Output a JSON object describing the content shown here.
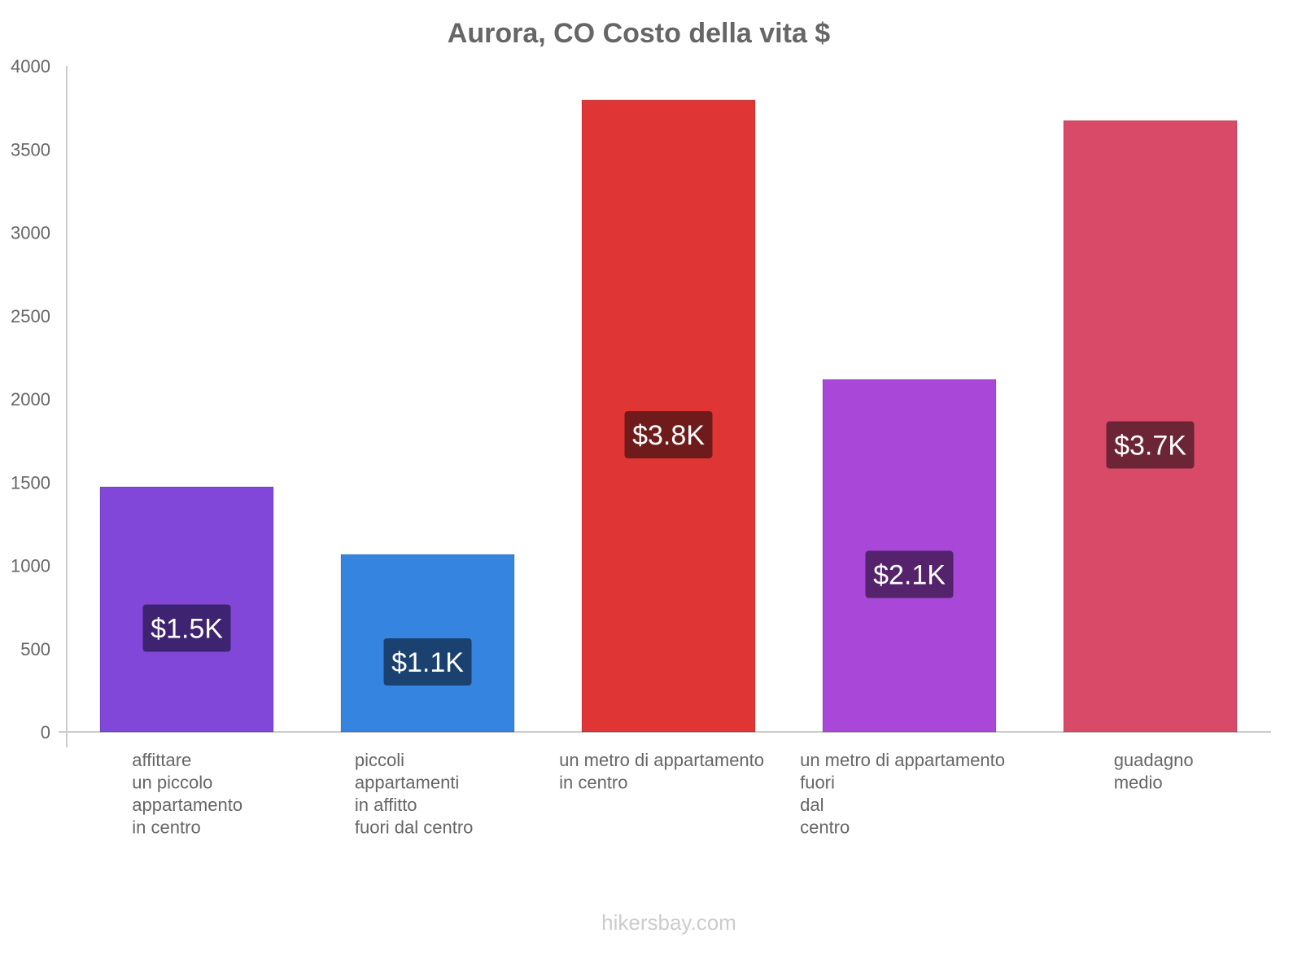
{
  "chart_data": {
    "type": "bar",
    "title": "Aurora, CO Costo della vita $",
    "xlabel": "",
    "ylabel": "",
    "ylim": [
      0,
      4000
    ],
    "yticks": [
      0,
      500,
      1000,
      1500,
      2000,
      2500,
      3000,
      3500,
      4000
    ],
    "grid": false,
    "categories": [
      [
        "affittare",
        "un piccolo",
        "appartamento",
        "in centro"
      ],
      [
        "piccoli",
        "appartamenti",
        "in affitto",
        "fuori dal centro"
      ],
      [
        "un metro di appartamento",
        "in centro"
      ],
      [
        "un metro di appartamento",
        "fuori",
        "dal",
        "centro"
      ],
      [
        "guadagno",
        "medio"
      ]
    ],
    "values": [
      1472,
      1066,
      3795,
      2117,
      3672
    ],
    "data_labels": [
      "$1.5K",
      "$1.1K",
      "$3.8K",
      "$2.1K",
      "$3.7K"
    ],
    "colors": [
      "#8047d8",
      "#3584e0",
      "#e03535",
      "#a947d8",
      "#d84a68"
    ],
    "label_colors": [
      "#3e2370",
      "#1b4170",
      "#701b1b",
      "#54236c",
      "#6c2534"
    ]
  },
  "watermark": "hikersbay.com"
}
